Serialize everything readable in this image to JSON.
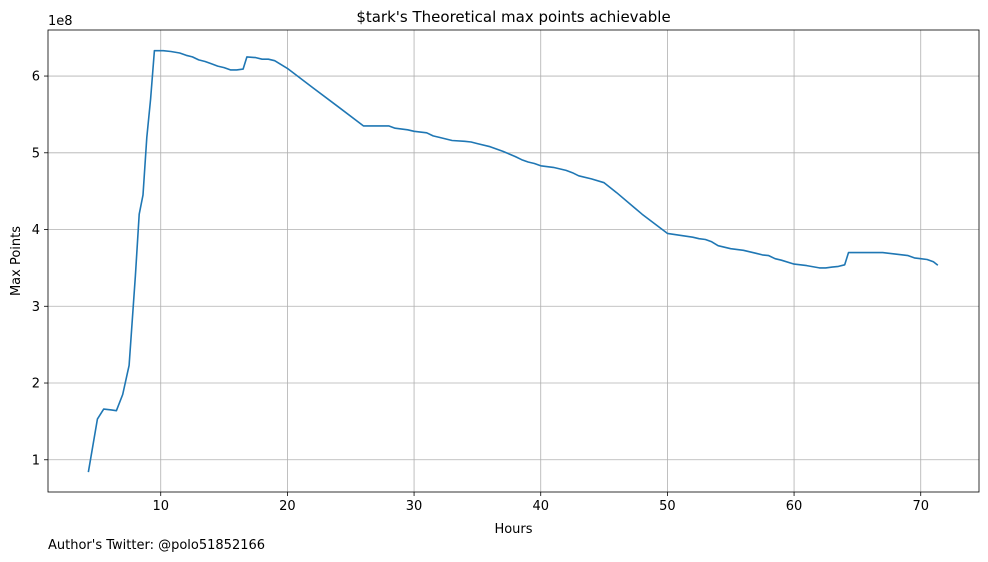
{
  "chart_data": {
    "type": "line",
    "title": "$tark's Theoretical max points achievable",
    "xlabel": "Hours",
    "ylabel": "Max Points",
    "y_offset_label": "1e8",
    "xlim": [
      1.1,
      74.6
    ],
    "ylim": [
      0.58,
      6.6
    ],
    "xticks": [
      10,
      20,
      30,
      40,
      50,
      60,
      70
    ],
    "yticks": [
      1,
      2,
      3,
      4,
      5,
      6
    ],
    "grid": true,
    "colors": {
      "line": "#1f77b4",
      "grid": "#b0b0b0"
    },
    "series": [
      {
        "x": [
          4.3,
          5.0,
          5.5,
          6.1,
          6.5,
          7.0,
          7.5,
          8.0,
          8.3,
          8.6,
          8.9,
          9.2,
          9.5,
          10.2,
          10.8,
          11.5,
          12.0,
          12.5,
          13.0,
          13.5,
          14.0,
          14.5,
          15.0,
          15.5,
          16.0,
          16.5,
          16.8,
          17.5,
          18.0,
          18.5,
          19.0,
          20.0,
          22.0,
          24.0,
          26.0,
          28.0,
          28.5,
          29.5,
          30.0,
          31.0,
          31.5,
          32.0,
          33.0,
          34.0,
          34.5,
          35.0,
          36.0,
          37.0,
          38.0,
          38.5,
          39.0,
          39.5,
          40.0,
          41.0,
          42.0,
          42.5,
          43.0,
          44.0,
          45.0,
          46.0,
          48.0,
          50.0,
          52.0,
          52.5,
          53.0,
          53.5,
          54.0,
          55.0,
          56.0,
          57.0,
          57.5,
          58.0,
          58.5,
          59.0,
          60.0,
          61.0,
          62.0,
          62.5,
          63.0,
          63.5,
          64.0,
          64.3,
          65.0,
          66.0,
          67.0,
          68.0,
          69.0,
          69.5,
          70.0,
          70.5,
          71.0,
          71.3
        ],
        "y": [
          0.85,
          1.53,
          1.66,
          1.65,
          1.64,
          1.85,
          2.23,
          3.4,
          4.2,
          4.45,
          5.2,
          5.7,
          6.33,
          6.33,
          6.32,
          6.3,
          6.27,
          6.25,
          6.21,
          6.19,
          6.16,
          6.13,
          6.11,
          6.08,
          6.08,
          6.09,
          6.25,
          6.24,
          6.22,
          6.22,
          6.2,
          6.1,
          5.85,
          5.6,
          5.35,
          5.35,
          5.32,
          5.3,
          5.28,
          5.26,
          5.22,
          5.2,
          5.16,
          5.15,
          5.14,
          5.12,
          5.08,
          5.02,
          4.95,
          4.91,
          4.88,
          4.86,
          4.83,
          4.81,
          4.77,
          4.74,
          4.7,
          4.66,
          4.61,
          4.48,
          4.2,
          3.95,
          3.9,
          3.88,
          3.87,
          3.84,
          3.79,
          3.75,
          3.73,
          3.69,
          3.67,
          3.66,
          3.62,
          3.6,
          3.55,
          3.53,
          3.5,
          3.5,
          3.51,
          3.52,
          3.54,
          3.7,
          3.7,
          3.7,
          3.7,
          3.68,
          3.66,
          3.63,
          3.62,
          3.61,
          3.58,
          3.54
        ]
      }
    ]
  },
  "footer": {
    "text": "Author's Twitter: @polo51852166"
  }
}
